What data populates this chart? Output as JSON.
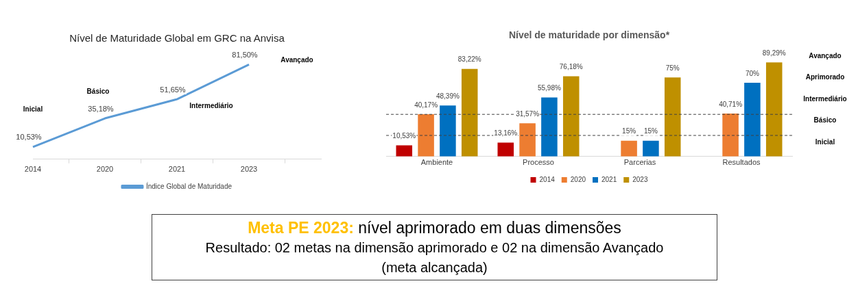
{
  "chart_data": [
    {
      "type": "line",
      "title": "Nível de Maturidade Global em GRC na Anvisa",
      "categories": [
        "2014",
        "2020",
        "2021",
        "2023",
        null
      ],
      "series": [
        {
          "name": "Índice Global de Maturidade",
          "color": "#5b9bd5",
          "values": [
            10.53,
            35.18,
            51.65,
            81.5,
            null
          ],
          "value_labels": [
            "10,53%",
            "35,18%",
            "51,65%",
            "81,50%",
            null
          ]
        }
      ],
      "annotations": [
        "Inicial",
        "Básico",
        "Intermediário",
        "Avançado"
      ],
      "legend": "bottom",
      "grid": false,
      "tick_labels": "x",
      "marker": "none",
      "line_style": "solid"
    },
    {
      "type": "bar",
      "title": "Nível de maturidade por dimensão*",
      "categories": [
        "Ambiente",
        "Processo",
        "Parcerias",
        "Resultados"
      ],
      "series": [
        {
          "name": "2014",
          "color": "#c00000",
          "values": [
            10.53,
            13.16,
            null,
            null
          ],
          "value_labels": [
            "10,53%",
            "13,16%",
            null,
            null
          ]
        },
        {
          "name": "2020",
          "color": "#ed7d31",
          "values": [
            40.17,
            31.57,
            15,
            40.71
          ],
          "value_labels": [
            "40,17%",
            "31,57%",
            "15%",
            "40,71%"
          ]
        },
        {
          "name": "2021",
          "color": "#0070c0",
          "values": [
            48.39,
            55.98,
            15,
            70
          ],
          "value_labels": [
            "48,39%",
            "55,98%",
            "15%",
            "70%"
          ]
        },
        {
          "name": "2023",
          "color": "#bf9000",
          "values": [
            83.22,
            76.18,
            75,
            89.29
          ],
          "value_labels": [
            "83,22%",
            "76,18%",
            "75%",
            "89,29%"
          ]
        }
      ],
      "ref_lines": [
        {
          "axis": "y",
          "value": 20,
          "label": null,
          "line_style": "dashed"
        },
        {
          "axis": "y",
          "value": 40,
          "label": null,
          "line_style": "dashed"
        }
      ],
      "annotations": [
        "Avançado",
        "Aprimorado",
        "Intermediário",
        "Básico",
        "Inicial"
      ],
      "legend": "bottom",
      "grid": false,
      "tick_labels": "x"
    },
    {
      "type": "other",
      "title": "Meta PE 2023:",
      "annotations": [
        "nível aprimorado em duas dimensões",
        "Resultado: 02 metas na dimensão aprimorado e 02 na dimensão Avançado (meta alcançada)"
      ]
    }
  ]
}
